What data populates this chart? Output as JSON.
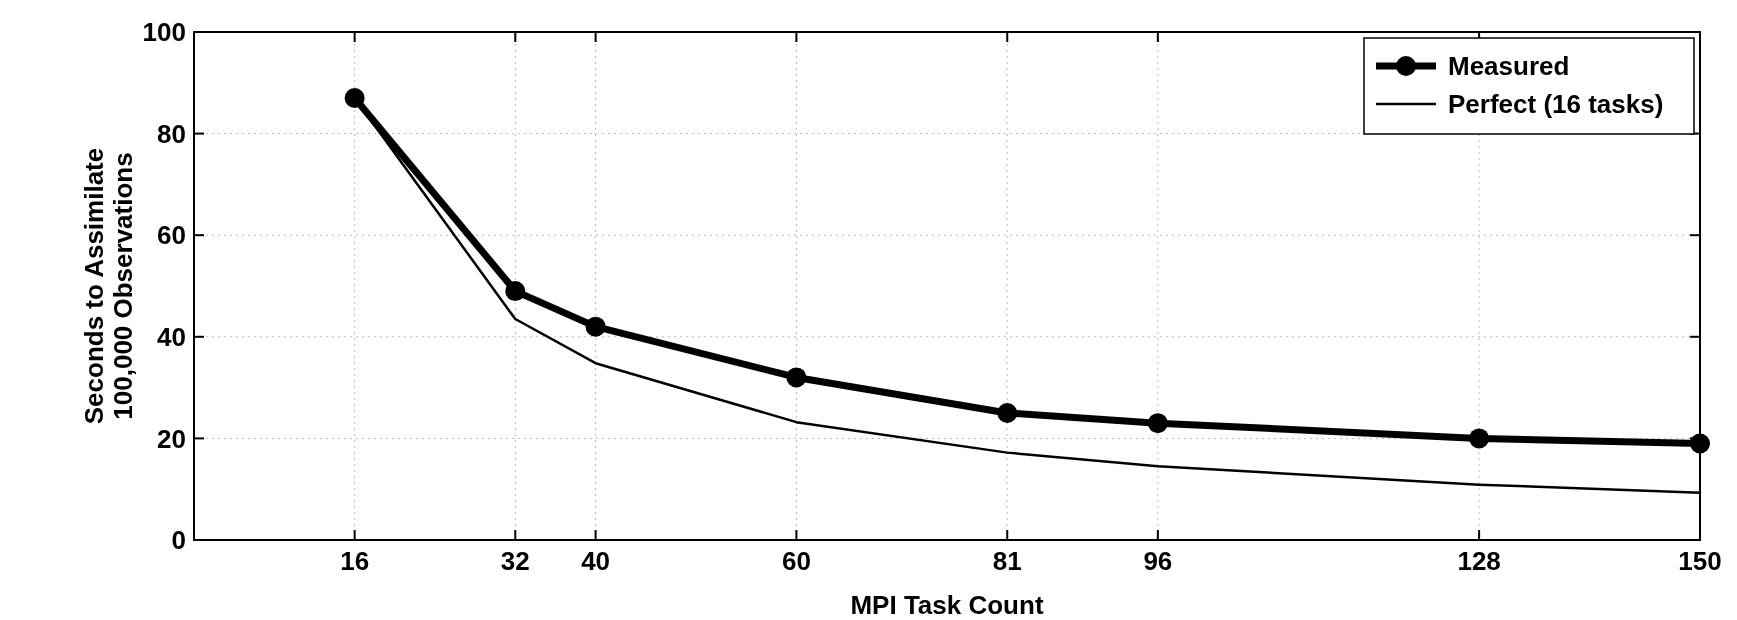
{
  "chart_data": {
    "type": "line",
    "xlabel": "MPI Task Count",
    "ylabel": "Seconds to Assimilate\n100,000 Observations",
    "x": [
      16,
      32,
      40,
      60,
      81,
      96,
      128,
      150
    ],
    "series": [
      {
        "name": "Measured",
        "color": "#000000",
        "values": [
          87,
          49,
          42,
          32,
          25,
          23,
          20,
          19
        ],
        "marker": "circle"
      },
      {
        "name": "Perfect (16 tasks)",
        "color": "#000000",
        "values": [
          87,
          43.5,
          34.8,
          23.2,
          17.2,
          14.5,
          10.9,
          9.3
        ],
        "marker": "none"
      }
    ],
    "xlim": [
      0,
      150
    ],
    "xticks": [
      16,
      32,
      40,
      60,
      81,
      96,
      128,
      150
    ],
    "ylim": [
      0,
      100
    ],
    "yticks": [
      0,
      20,
      40,
      60,
      80,
      100
    ],
    "grid": true,
    "legend": "top right",
    "line_style": "solid"
  }
}
